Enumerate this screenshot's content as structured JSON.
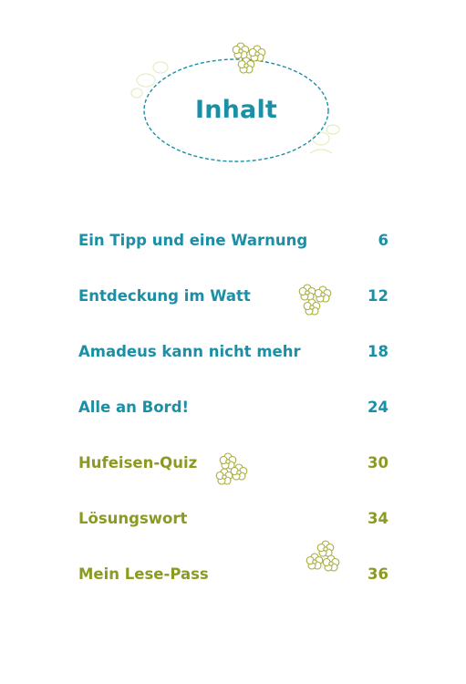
{
  "header": {
    "title": "Inhalt"
  },
  "colors": {
    "teal": "#1a8fa6",
    "olive": "#8c9a22",
    "flower": "#a8ad3c",
    "flower_faint": "#e7ecc6"
  },
  "toc": [
    {
      "label": "Ein Tipp und eine Warnung",
      "page": "6"
    },
    {
      "label": "Entdeckung im Watt",
      "page": "12"
    },
    {
      "label": "Amadeus kann nicht mehr",
      "page": "18"
    },
    {
      "label": "Alle an Bord!",
      "page": "24"
    },
    {
      "label": "Hufeisen-Quiz",
      "page": "30"
    },
    {
      "label": "Lösungswort",
      "page": "34"
    },
    {
      "label": "Mein Lese-Pass",
      "page": "36"
    }
  ]
}
